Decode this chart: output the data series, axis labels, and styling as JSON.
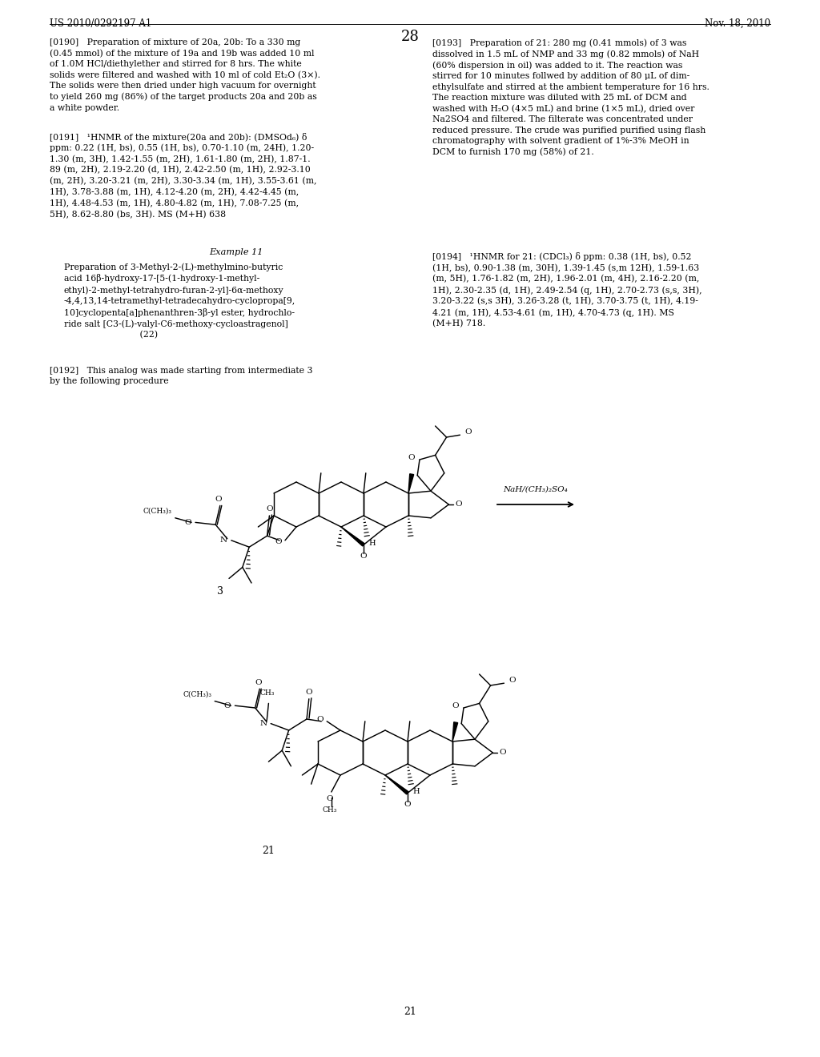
{
  "background_color": "#ffffff",
  "header_left": "US 2010/0292197 A1",
  "header_right": "Nov. 18, 2010",
  "page_number": "28",
  "para_fs": 7.8,
  "font_family": "DejaVu Serif",
  "t0190": "[0190]   Preparation of mixture of 20a, 20b: To a 330 mg\n(0.45 mmol) of the mixture of 19a and 19b was added 10 ml\nof 1.0M HCl/diethylether and stirred for 8 hrs. The white\nsolids were filtered and washed with 10 ml of cold Et₂O (3×).\nThe solids were then dried under high vacuum for overnight\nto yield 260 mg (86%) of the target products 20a and 20b as\na white powder.",
  "t0191": "[0191]   ¹HNMR of the mixture(20a and 20b): (DMSOd₆) δ\nppm: 0.22 (1H, bs), 0.55 (1H, bs), 0.70-1.10 (m, 24H), 1.20-\n1.30 (m, 3H), 1.42-1.55 (m, 2H), 1.61-1.80 (m, 2H), 1.87-1.\n89 (m, 2H), 2.19-2.20 (d, 1H), 2.42-2.50 (m, 1H), 2.92-3.10\n(m, 2H), 3.20-3.21 (m, 2H), 3.30-3.34 (m, 1H), 3.55-3.61 (m,\n1H), 3.78-3.88 (m, 1H), 4.12-4.20 (m, 2H), 4.42-4.45 (m,\n1H), 4.48-4.53 (m, 1H), 4.80-4.82 (m, 1H), 7.08-7.25 (m,\n5H), 8.62-8.80 (bs, 3H). MS (M+H) 638",
  "t0192": "[0192]   This analog was made starting from intermediate 3\nby the following procedure",
  "t0193": "[0193]   Preparation of 21: 280 mg (0.41 mmols) of 3 was\ndissolved in 1.5 mL of NMP and 33 mg (0.82 mmols) of NaH\n(60% dispersion in oil) was added to it. The reaction was\nstirred for 10 minutes follwed by addition of 80 μL of dim-\nethylsulfate and stirred at the ambient temperature for 16 hrs.\nThe reaction mixture was diluted with 25 mL of DCM and\nwashed with H₂O (4×5 mL) and brine (1×5 mL), dried over\nNa2SO4 and filtered. The filterate was concentrated under\nreduced pressure. The crude was purified purified using flash\nchromatography with solvent gradient of 1%-3% MeOH in\nDCM to furnish 170 mg (58%) of 21.",
  "t0194": "[0194]   ¹HNMR for 21: (CDCl₃) δ ppm: 0.38 (1H, bs), 0.52\n(1H, bs), 0.90-1.38 (m, 30H), 1.39-1.45 (s,m 12H), 1.59-1.63\n(m, 5H), 1.76-1.82 (m, 2H), 1.96-2.01 (m, 4H), 2.16-2.20 (m,\n1H), 2.30-2.35 (d, 1H), 2.49-2.54 (q, 1H), 2.70-2.73 (s,s, 3H),\n3.20-3.22 (s,s 3H), 3.26-3.28 (t, 1H), 3.70-3.75 (t, 1H), 4.19-\n4.21 (m, 1H), 4.53-4.61 (m, 1H), 4.70-4.73 (q, 1H). MS\n(M+H) 718.",
  "ex11_title": "Example 11",
  "ex11_text": "Preparation of 3-Methyl-2-(L)-methylmino-butyric\nacid 16β-hydroxy-17-[5-(1-hydroxy-1-methyl-\nethyl)-2-methyl-tetrahydro-furan-2-yl]-6α-methoxy\n-4,4,13,14-tetramethyl-tetradecahydro-cyclopropa[9,\n10]cyclopenta[a]phenanthren-3β-yl ester, hydrochlo-\nride salt [C3-(L)-valyl-C6-methoxy-cycloastragenol]\n                           (22)",
  "arrow_text": "NaH/(CH₃)₂SO₄",
  "label3": "3",
  "label21": "21",
  "page_label": "21"
}
